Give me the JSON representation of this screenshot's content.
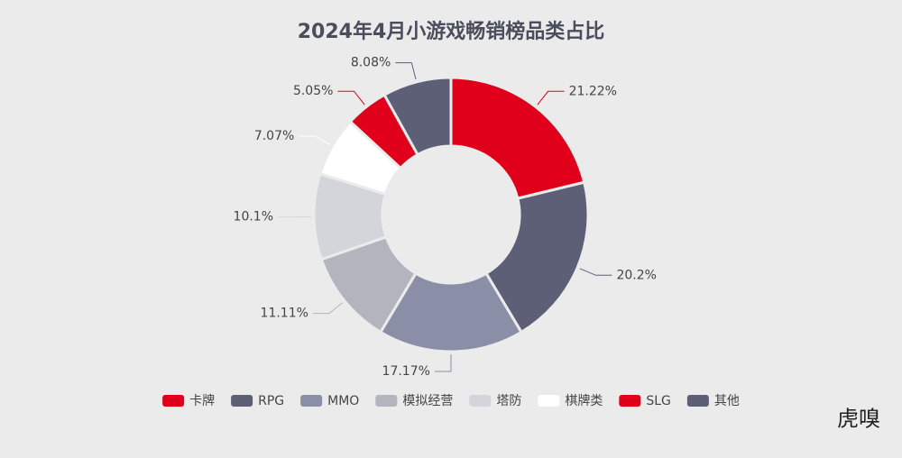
{
  "chart_data": {
    "type": "donut",
    "title": "2024年4月小游戏畅销榜品类占比",
    "categories": [
      "卡牌",
      "RPG",
      "MMO",
      "模拟经营",
      "塔防",
      "棋牌类",
      "SLG",
      "其他"
    ],
    "values": [
      21.22,
      20.2,
      17.17,
      11.11,
      10.1,
      7.07,
      5.05,
      8.08
    ],
    "value_labels": [
      "21.22%",
      "20.2%",
      "17.17%",
      "11.11%",
      "10.1%",
      "7.07%",
      "5.05%",
      "8.08%"
    ],
    "colors": [
      "#e0001b",
      "#5d5f77",
      "#8a8ea6",
      "#b3b5be",
      "#d3d5da",
      "#ffffff",
      "#e0001b",
      "#5d5f77"
    ],
    "legend": "bottom"
  },
  "watermark": "虎嗅"
}
